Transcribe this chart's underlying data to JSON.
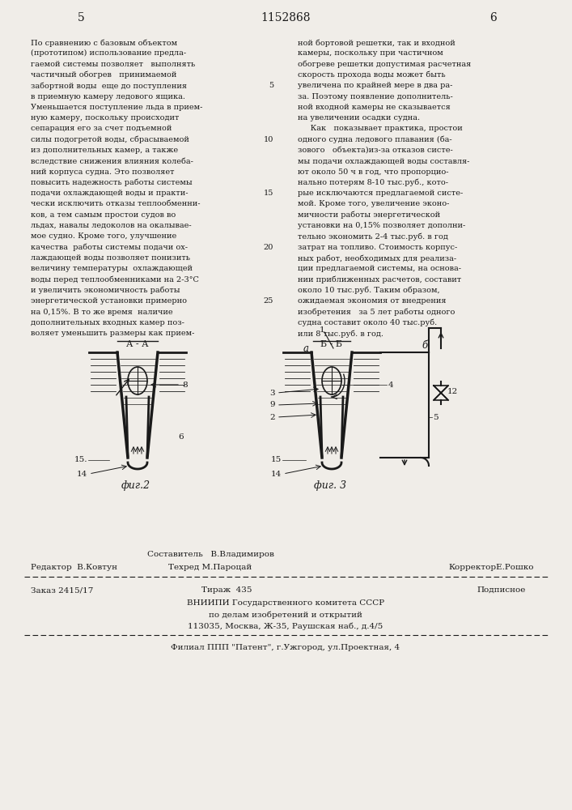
{
  "page_number_left": "5",
  "page_number_center": "1152868",
  "page_number_right": "6",
  "text_left_col": [
    "По сравнению с базовым объектом",
    "(прототипом) использование предла-",
    "гаемой системы позволяет   выполнять",
    "частичный обогрев   принимаемой",
    "забортной воды  еще до поступления",
    "в приемную камеру ледового ящика.",
    "Уменьшается поступление льда в прием-",
    "ную камеру, поскольку происходит",
    "сепарация его за счет подъемной",
    "силы подогретой воды, сбрасываемой",
    "из дополнительных камер, а также",
    "вследствие снижения влияния колеба-",
    "ний корпуса судна. Это позволяет",
    "повысить надежность работы системы",
    "подачи охлаждающей воды и практи-",
    "чески исключить отказы теплообменни-",
    "ков, а тем самым простои судов во",
    "льдах, навалы ледоколов на окалывае-",
    "мое судно. Кроме того, улучшение",
    "качества  работы системы подачи ох-",
    "лаждающей воды позволяет понизить",
    "величину температуры  охлаждающей",
    "воды перед теплообменниками на 2-3°C",
    "и увеличить экономичность работы",
    "энергетической установки примерно",
    "на 0,15%. В то же время  наличие",
    "дополнительных входных камер поз-",
    "воляет уменьшить размеры как прием-"
  ],
  "text_right_col": [
    "ной бортовой решетки, так и входной",
    "камеры, поскольку при частичном",
    "обогреве решетки допустимая расчетная",
    "скорость прохода воды может быть",
    "увеличена по крайней мере в два ра-",
    "за. Поэтому появление дополнитель-",
    "ной входной камеры не сказывается",
    "на увеличении осадки судна.",
    "     Как   показывает практика, простои",
    "одного судна ледового плавания (ба-",
    "зового   объекта)из-за отказов систе-",
    "мы подачи охлаждающей воды составля-",
    "ют около 50 ч в год, что пропорцио-",
    "нально потерям 8-10 тыс.руб., кото-",
    "рые исключаются предлагаемой систе-",
    "мой. Кроме того, увеличение эконо-",
    "мичности работы энергетической",
    "установки на 0,15% позволяет дополни-",
    "тельно экономить 2-4 тыс.руб. в год",
    "затрат на топливо. Стоимость корпус-",
    "ных работ, необходимых для реализа-",
    "ции предлагаемой системы, на основа-",
    "нии приближенных расчетов, составит",
    "около 10 тыс.руб. Таким образом,",
    "ожидаемая экономия от внедрения",
    "изобретения   за 5 лет работы одного",
    "судна составит около 40 тыс.руб.",
    "или 8 тыс.руб. в год."
  ],
  "fig2_label": "фиг.2",
  "fig3_label": "фиг. 3",
  "fig2_section": "А - А",
  "fig3_section": "Б - Б",
  "footer_editor": "Редактор  В.Ковтун",
  "footer_composer": "Составитель   В.Владимиров",
  "footer_techred": "Техред М.Пароцай",
  "footer_corrector": "КорректорЕ.Рошко",
  "footer_order": "Заказ 2415/17",
  "footer_print": "Тираж  435",
  "footer_subscription": "Подписное",
  "footer_org": "ВНИИПИ Государственного комитета СССР",
  "footer_org2": "по делам изобретений и открытий",
  "footer_address": "113035, Москва, Ж-35, Раушская наб., д.4/5",
  "footer_branch": "Филиал ППП \"Патент\", г.Ужгород, ул.Проектная, 4",
  "bg_color": "#f0ede8",
  "text_color": "#1a1a1a"
}
